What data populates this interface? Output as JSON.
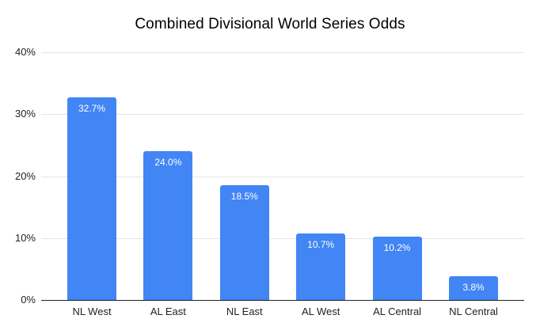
{
  "chart_data": {
    "type": "bar",
    "title": "Combined Divisional World Series Odds",
    "categories": [
      "NL West",
      "AL East",
      "NL East",
      "AL West",
      "AL Central",
      "NL Central"
    ],
    "values": [
      32.7,
      24.0,
      18.5,
      10.7,
      10.2,
      3.8
    ],
    "data_labels": [
      "32.7%",
      "24.0%",
      "18.5%",
      "10.7%",
      "10.2%",
      "3.8%"
    ],
    "xlabel": "",
    "ylabel": "",
    "ylim": [
      0,
      40
    ],
    "yticks": [
      {
        "value": 0,
        "label": "0%"
      },
      {
        "value": 10,
        "label": "10%"
      },
      {
        "value": 20,
        "label": "20%"
      },
      {
        "value": 30,
        "label": "30%"
      },
      {
        "value": 40,
        "label": "40%"
      }
    ],
    "grid": true,
    "legend": "none",
    "colors": {
      "bar": "#4285f4",
      "bar_label": "#ffffff",
      "axis_label": "#222222",
      "gridline": "#e3e3e3",
      "baseline": "#222222",
      "title": "#000000",
      "background": "#ffffff"
    }
  }
}
